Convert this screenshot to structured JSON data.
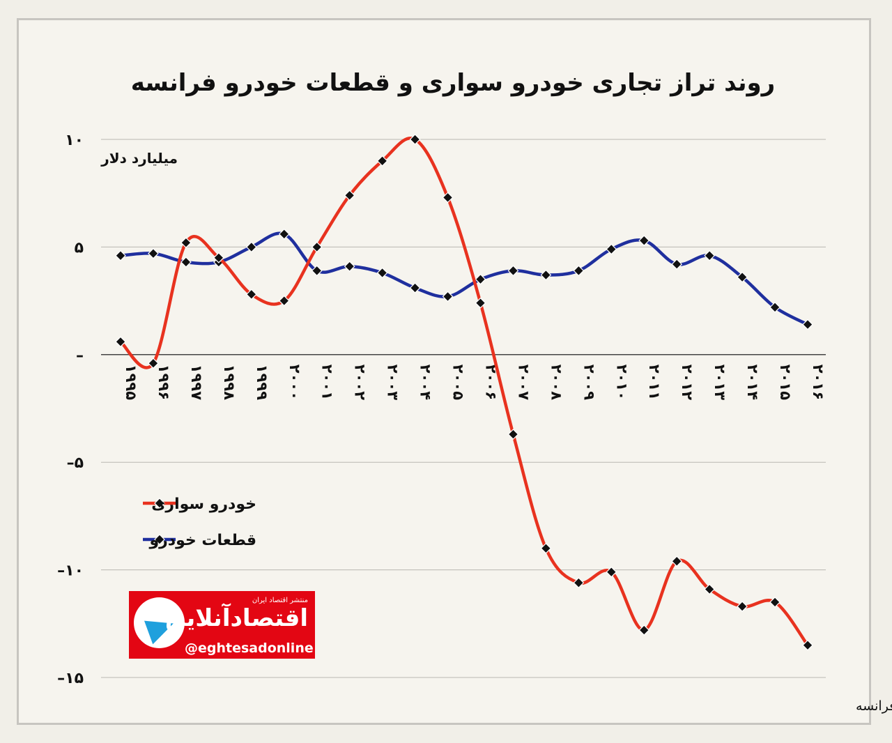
{
  "chart_data": {
    "type": "line",
    "title": "روند تراز تجاری خودرو سواری و قطعات خودرو فرانسه",
    "unit_label": "میلیارد دلار",
    "ylim": [
      -15,
      10
    ],
    "yticks": [
      10,
      5,
      0,
      -5,
      -10,
      -15
    ],
    "ytick_labels": [
      "۱۰",
      "۵",
      "–",
      "–۵",
      "–۱۰",
      "–۱۵"
    ],
    "categories": [
      1995,
      1996,
      1997,
      1998,
      1999,
      2000,
      2001,
      2002,
      2003,
      2004,
      2005,
      2006,
      2007,
      2008,
      2009,
      2010,
      2011,
      2012,
      2013,
      2014,
      2015,
      2016
    ],
    "category_labels": [
      "۱۹۹۵",
      "۱۹۹۶",
      "۱۹۹۷",
      "۱۹۹۸",
      "۱۹۹۹",
      "۲۰۰۰",
      "۲۰۰۱",
      "۲۰۰۲",
      "۲۰۰۳",
      "۲۰۰۴",
      "۲۰۰۵",
      "۲۰۰۶",
      "۲۰۰۷",
      "۲۰۰۸",
      "۲۰۰۹",
      "۲۰۱۰",
      "۲۰۱۱",
      "۲۰۱۲",
      "۲۰۱۳",
      "۲۰۱۴",
      "۲۰۱۵",
      "۲۰۱۶"
    ],
    "series": [
      {
        "name": "خودرو سواری",
        "color": "#e8321f",
        "values": [
          0.6,
          -0.4,
          5.2,
          4.5,
          2.8,
          2.5,
          5.0,
          7.4,
          9.0,
          10.0,
          7.3,
          2.4,
          -3.7,
          -9.0,
          -10.6,
          -10.1,
          -12.8,
          -9.6,
          -10.9,
          -11.7,
          -11.5,
          -13.5
        ]
      },
      {
        "name": "قطعات خودرو",
        "color": "#1f2f9e",
        "values": [
          4.6,
          4.7,
          4.3,
          4.3,
          5.0,
          5.6,
          3.9,
          4.1,
          3.8,
          3.1,
          2.7,
          3.5,
          3.9,
          3.7,
          3.9,
          4.9,
          5.3,
          4.2,
          4.6,
          3.6,
          2.2,
          1.4
        ]
      }
    ],
    "legend_position": "lower-left",
    "grid": true,
    "marker": "diamond"
  },
  "source": "تحلیل و استنتاج: احسان سلطانی بر اساس داده های گمرک فرانسه",
  "logo": {
    "tagline": "منتشر اقتصاد ایران",
    "name": "اقتصادآنلاین",
    "handle": "@eghtesadonline"
  }
}
